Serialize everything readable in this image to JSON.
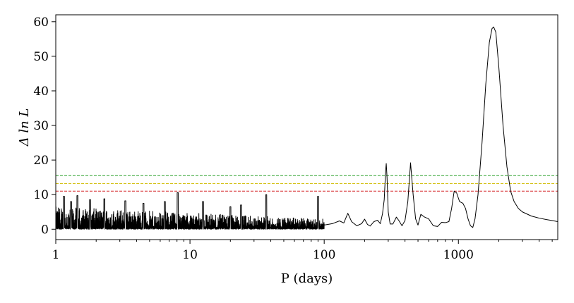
{
  "chart_data": {
    "type": "line",
    "title": "",
    "xlabel": "P (days)",
    "ylabel": "Δ ln L",
    "xscale": "log",
    "xlim": [
      1,
      5500
    ],
    "ylim": [
      -3,
      62
    ],
    "grid": false,
    "xticks": [
      1,
      10,
      100,
      1000
    ],
    "xtick_labels": [
      "1",
      "10",
      "100",
      "1000"
    ],
    "yticks": [
      0,
      10,
      20,
      30,
      40,
      50,
      60
    ],
    "ytick_labels": [
      "0",
      "10",
      "20",
      "30",
      "40",
      "50",
      "60"
    ],
    "thresholds": [
      {
        "y": 15.5,
        "color": "#2ca02c",
        "style": "dashed"
      },
      {
        "y": 13.2,
        "color": "#d4c21a",
        "style": "dashed"
      },
      {
        "y": 11.0,
        "color": "#d62728",
        "style": "dashed"
      }
    ],
    "series": [
      {
        "color": "#000000",
        "peaks": [
          [
            1.15,
            9.5
          ],
          [
            1.3,
            8.0
          ],
          [
            1.45,
            9.7
          ],
          [
            1.8,
            8.5
          ],
          [
            2.3,
            8.8
          ],
          [
            3.3,
            8.2
          ],
          [
            4.5,
            7.5
          ],
          [
            6.5,
            8.0
          ],
          [
            8.1,
            10.6
          ],
          [
            12.5,
            8.0
          ],
          [
            20,
            6.5
          ],
          [
            24,
            7.0
          ],
          [
            37,
            10.0
          ],
          [
            90,
            9.5
          ],
          [
            150,
            5.0
          ],
          [
            250,
            2.5
          ],
          [
            290,
            19.0
          ],
          [
            440,
            19.2
          ],
          [
            930,
            11.0
          ],
          [
            1830,
            58.5
          ]
        ],
        "smooth_curve": [
          [
            100,
            1.2
          ],
          [
            115,
            1.6
          ],
          [
            130,
            2.4
          ],
          [
            140,
            1.8
          ],
          [
            150,
            4.6
          ],
          [
            160,
            2.2
          ],
          [
            175,
            1.0
          ],
          [
            190,
            1.6
          ],
          [
            200,
            2.9
          ],
          [
            210,
            1.4
          ],
          [
            220,
            0.9
          ],
          [
            235,
            2.2
          ],
          [
            250,
            2.6
          ],
          [
            262,
            1.6
          ],
          [
            272,
            4.5
          ],
          [
            280,
            8.5
          ],
          [
            287,
            17.0
          ],
          [
            290,
            19.0
          ],
          [
            294,
            15.0
          ],
          [
            300,
            5.0
          ],
          [
            310,
            1.5
          ],
          [
            325,
            1.5
          ],
          [
            345,
            3.5
          ],
          [
            360,
            2.5
          ],
          [
            380,
            1.0
          ],
          [
            400,
            2.5
          ],
          [
            420,
            8.0
          ],
          [
            440,
            19.2
          ],
          [
            460,
            10.0
          ],
          [
            480,
            3.0
          ],
          [
            500,
            1.2
          ],
          [
            525,
            4.3
          ],
          [
            560,
            3.5
          ],
          [
            600,
            3.0
          ],
          [
            650,
            1.0
          ],
          [
            700,
            0.8
          ],
          [
            750,
            2.0
          ],
          [
            800,
            1.9
          ],
          [
            850,
            2.2
          ],
          [
            890,
            6.0
          ],
          [
            930,
            11.0
          ],
          [
            970,
            10.5
          ],
          [
            1020,
            8.0
          ],
          [
            1080,
            7.5
          ],
          [
            1130,
            6.0
          ],
          [
            1180,
            3.0
          ],
          [
            1230,
            1.0
          ],
          [
            1280,
            0.5
          ],
          [
            1330,
            3.0
          ],
          [
            1400,
            10.0
          ],
          [
            1500,
            25.0
          ],
          [
            1600,
            42.0
          ],
          [
            1700,
            54.0
          ],
          [
            1780,
            58.0
          ],
          [
            1830,
            58.5
          ],
          [
            1900,
            57.0
          ],
          [
            2000,
            47.0
          ],
          [
            2150,
            30.0
          ],
          [
            2300,
            18.0
          ],
          [
            2450,
            11.0
          ],
          [
            2600,
            8.0
          ],
          [
            2800,
            6.0
          ],
          [
            3000,
            5.0
          ],
          [
            3500,
            3.8
          ],
          [
            4000,
            3.2
          ],
          [
            4500,
            2.8
          ],
          [
            5000,
            2.5
          ],
          [
            5500,
            2.2
          ]
        ]
      }
    ]
  }
}
